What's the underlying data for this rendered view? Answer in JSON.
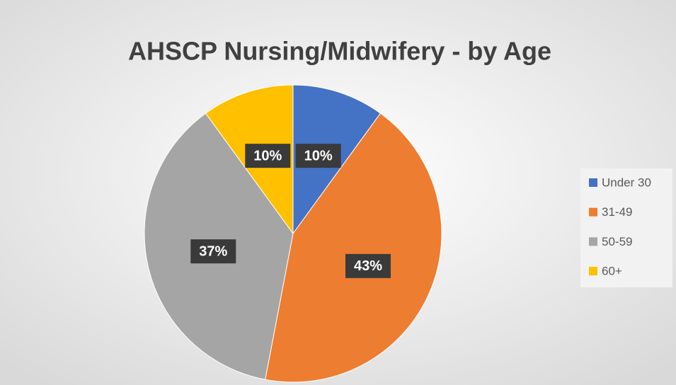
{
  "chart_data": {
    "type": "pie",
    "title": "AHSCP Nursing/Midwifery - by Age",
    "categories": [
      "Under 30",
      "31-49",
      "50-59",
      "60+"
    ],
    "values": [
      10,
      43,
      37,
      10
    ],
    "value_labels": [
      "10%",
      "43%",
      "37%",
      "10%"
    ],
    "colors": [
      "#4472c4",
      "#ed7d31",
      "#a5a5a5",
      "#ffc000"
    ],
    "legend": "right"
  }
}
